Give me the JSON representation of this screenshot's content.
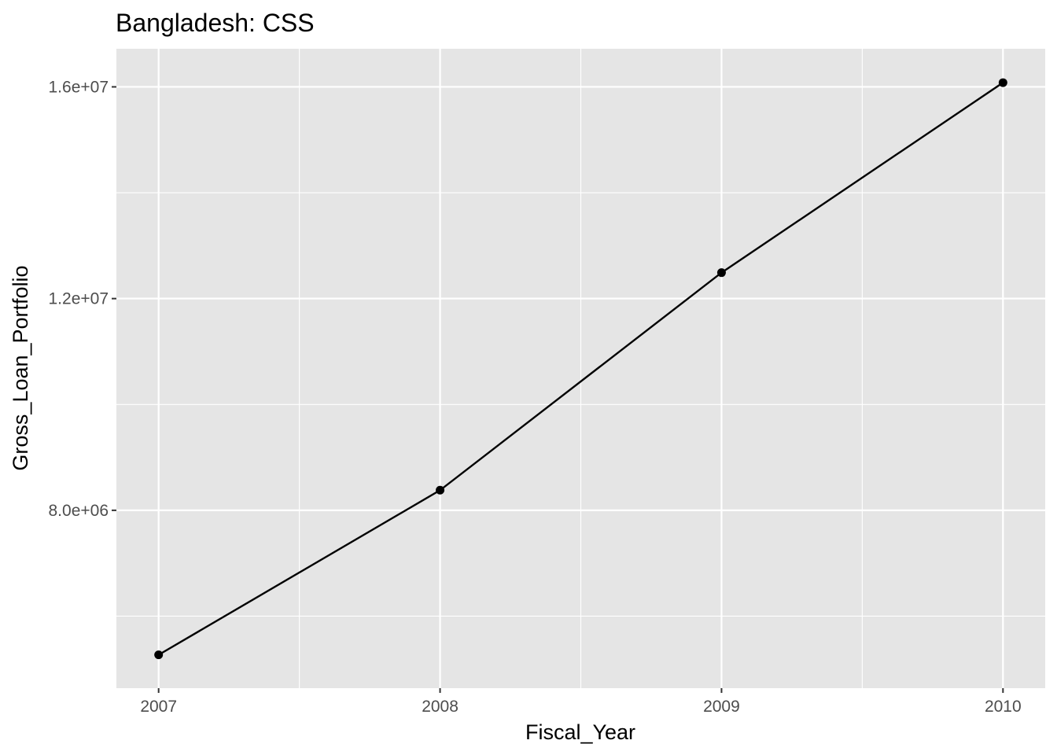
{
  "chart_data": {
    "type": "line",
    "title": "Bangladesh:  CSS",
    "xlabel": "Fiscal_Year",
    "ylabel": "Gross_Loan_Portfolio",
    "x": [
      2007,
      2008,
      2009,
      2010
    ],
    "x_tick_labels": [
      "2007",
      "2008",
      "2009",
      "2010"
    ],
    "xlim": [
      2006.85,
      2010.15
    ],
    "y_ticks": [
      8000000,
      12000000,
      16000000
    ],
    "y_tick_labels": [
      "8.0e+06",
      "1.2e+07",
      "1.6e+07"
    ],
    "ylim": [
      4640000,
      16720000
    ],
    "series": [
      {
        "values": [
          5270000,
          8380000,
          12490000,
          16080000
        ]
      }
    ],
    "grid": true,
    "legend": "none",
    "colors": {
      "panel": "#e5e5e5",
      "grid": "#ffffff",
      "line": "#000000",
      "tick_text": "#4d4d4d"
    }
  }
}
